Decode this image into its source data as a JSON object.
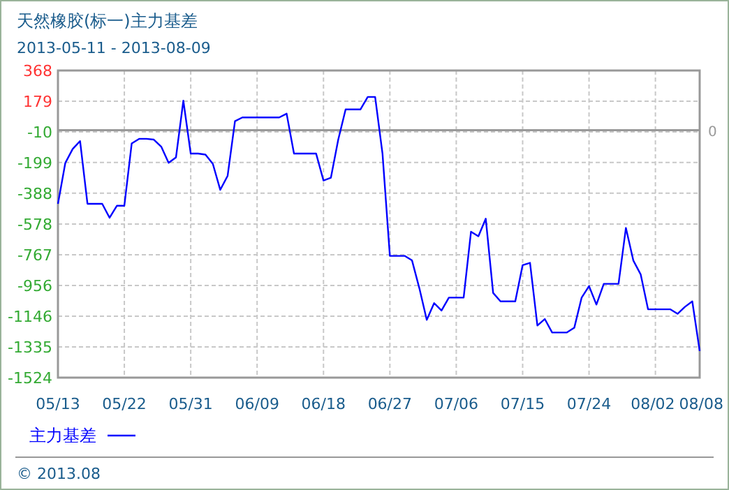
{
  "chart_data": {
    "type": "line",
    "title": "天然橡胶(标一)主力基差",
    "subtitle": "2013-05-11 - 2013-08-09",
    "x": [
      "2013-05-13",
      "2013-05-14",
      "2013-05-15",
      "2013-05-16",
      "2013-05-17",
      "2013-05-18",
      "2013-05-19",
      "2013-05-20",
      "2013-05-21",
      "2013-05-22",
      "2013-05-23",
      "2013-05-24",
      "2013-05-25",
      "2013-05-26",
      "2013-05-27",
      "2013-05-28",
      "2013-05-29",
      "2013-05-30",
      "2013-05-31",
      "2013-06-01",
      "2013-06-02",
      "2013-06-03",
      "2013-06-04",
      "2013-06-05",
      "2013-06-06",
      "2013-06-07",
      "2013-06-08",
      "2013-06-09",
      "2013-06-10",
      "2013-06-11",
      "2013-06-12",
      "2013-06-13",
      "2013-06-14",
      "2013-06-15",
      "2013-06-16",
      "2013-06-17",
      "2013-06-18",
      "2013-06-19",
      "2013-06-20",
      "2013-06-21",
      "2013-06-22",
      "2013-06-23",
      "2013-06-24",
      "2013-06-25",
      "2013-06-26",
      "2013-06-27",
      "2013-06-28",
      "2013-06-29",
      "2013-06-30",
      "2013-07-01",
      "2013-07-02",
      "2013-07-03",
      "2013-07-04",
      "2013-07-05",
      "2013-07-06",
      "2013-07-07",
      "2013-07-08",
      "2013-07-09",
      "2013-07-10",
      "2013-07-11",
      "2013-07-12",
      "2013-07-13",
      "2013-07-14",
      "2013-07-15",
      "2013-07-16",
      "2013-07-17",
      "2013-07-18",
      "2013-07-19",
      "2013-07-20",
      "2013-07-21",
      "2013-07-22",
      "2013-07-23",
      "2013-07-24",
      "2013-07-25",
      "2013-07-26",
      "2013-07-27",
      "2013-07-28",
      "2013-07-29",
      "2013-07-30",
      "2013-07-31",
      "2013-08-01",
      "2013-08-02",
      "2013-08-03",
      "2013-08-04",
      "2013-08-05",
      "2013-08-06",
      "2013-08-07",
      "2013-08-08"
    ],
    "series": [
      {
        "name": "主力基差",
        "color": "#0000ff",
        "values": [
          -453,
          -201,
          -115,
          -67,
          -453,
          -453,
          -453,
          -539,
          -465,
          -465,
          -81,
          -53,
          -53,
          -58,
          -101,
          -201,
          -167,
          182,
          -144,
          -144,
          -150,
          -207,
          -367,
          -281,
          56,
          79,
          79,
          79,
          79,
          79,
          79,
          102,
          -144,
          -144,
          -144,
          -144,
          -310,
          -293,
          -58,
          128,
          128,
          128,
          205,
          205,
          -144,
          -774,
          -774,
          -774,
          -802,
          -974,
          -1168,
          -1065,
          -1111,
          -1031,
          -1031,
          -1031,
          -625,
          -653,
          -545,
          -1002,
          -1054,
          -1054,
          -1054,
          -831,
          -817,
          -1203,
          -1163,
          -1246,
          -1246,
          -1246,
          -1217,
          -1031,
          -960,
          -1074,
          -946,
          -946,
          -946,
          -602,
          -802,
          -888,
          -1103,
          -1103,
          -1103,
          -1103,
          -1131,
          -1088,
          -1054,
          -1360
        ]
      }
    ],
    "xlim": [
      "2013-05-13",
      "2013-08-08"
    ],
    "xticks": [
      {
        "value": "2013-05-13",
        "label": "05/13"
      },
      {
        "value": "2013-05-22",
        "label": "05/22"
      },
      {
        "value": "2013-05-31",
        "label": "05/31"
      },
      {
        "value": "2013-06-09",
        "label": "06/09"
      },
      {
        "value": "2013-06-18",
        "label": "06/18"
      },
      {
        "value": "2013-06-27",
        "label": "06/27"
      },
      {
        "value": "2013-07-06",
        "label": "07/06"
      },
      {
        "value": "2013-07-15",
        "label": "07/15"
      },
      {
        "value": "2013-07-24",
        "label": "07/24"
      },
      {
        "value": "2013-08-02",
        "label": "08/02"
      },
      {
        "value": "2013-08-08",
        "label": "08/08"
      }
    ],
    "ylim": [
      -1524,
      368
    ],
    "yticks": [
      368,
      179,
      -10,
      -199,
      -388,
      -578,
      -767,
      -956,
      -1146,
      -1335,
      -1524
    ],
    "ref_lines": [
      {
        "axis": "y",
        "value": 0,
        "label": "0"
      }
    ],
    "grid": true,
    "legend": "bottom left",
    "marker": "none",
    "line_style": "solid",
    "annotations": [
      "© 2013.08"
    ]
  }
}
